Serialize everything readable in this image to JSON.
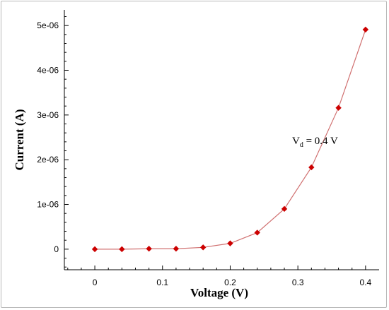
{
  "chart_data": {
    "type": "line",
    "xlabel": "Voltage (V)",
    "ylabel": "Current (A)",
    "xlim": [
      -0.045,
      0.42
    ],
    "ylim": [
      -4.6e-07,
      5.35e-06
    ],
    "grid": false,
    "x_ticks": [
      {
        "value": 0,
        "label": "0"
      },
      {
        "value": 0.1,
        "label": "0.1"
      },
      {
        "value": 0.2,
        "label": "0.2"
      },
      {
        "value": 0.3,
        "label": "0.3"
      },
      {
        "value": 0.4,
        "label": "0.4"
      }
    ],
    "y_ticks": [
      {
        "value": 0,
        "label": "0"
      },
      {
        "value": 1e-06,
        "label": "1e-06"
      },
      {
        "value": 2e-06,
        "label": "2e-06"
      },
      {
        "value": 3e-06,
        "label": "3e-06"
      },
      {
        "value": 4e-06,
        "label": "4e-06"
      },
      {
        "value": 5e-06,
        "label": "5e-06"
      }
    ],
    "series": [
      {
        "x": [
          0,
          0.04,
          0.08,
          0.12,
          0.16,
          0.2,
          0.24,
          0.28,
          0.32,
          0.36,
          0.4
        ],
        "y": [
          0,
          0,
          1e-08,
          1e-08,
          4e-08,
          1.3e-07,
          3.7e-07,
          9e-07,
          1.83e-06,
          3.16e-06,
          4.91e-06
        ],
        "line_color": "#d07070",
        "marker_color": "#cc0000",
        "marker": "diamond"
      }
    ],
    "annotation": {
      "text_main": "V",
      "text_sub": "d",
      "text_rest": " = 0.4 V",
      "x": 0.31,
      "y": 2.5e-06
    }
  }
}
